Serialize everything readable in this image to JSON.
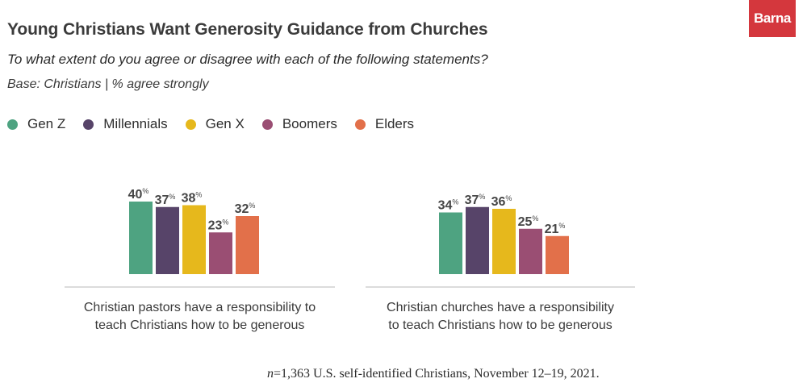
{
  "header": {
    "title": "Young Christians Want Generosity Guidance from Churches",
    "subtitle": "To what extent do you agree or disagree with each of the following statements?",
    "base": "Base: Christians | % agree strongly",
    "logo": "Barna"
  },
  "colors": {
    "Gen Z": "#4ea381",
    "Millennials": "#574469",
    "Gen X": "#e6b81c",
    "Boomers": "#9a4e73",
    "Elders": "#e2704a",
    "logo_bg": "#d4373d"
  },
  "footnote": {
    "n_symbol": "n",
    "text": "=1,363 U.S. self-identified Christians, November 12–19, 2021."
  },
  "chart_data": {
    "type": "bar",
    "title": "Young Christians Want Generosity Guidance from Churches",
    "xlabel": "",
    "ylabel": "% agree strongly",
    "ylim": [
      0,
      100
    ],
    "grid": false,
    "legend_position": "top-left",
    "value_suffix": "%",
    "legend": [
      "Gen Z",
      "Millennials",
      "Gen X",
      "Boomers",
      "Elders"
    ],
    "categories": [
      "Christian pastors have a responsibility to teach Christians how to be generous",
      "Christian churches have a responsibility to teach Christians how to be generous"
    ],
    "category_lines": [
      [
        "Christian pastors have a responsibility to",
        "teach Christians how to be generous"
      ],
      [
        "Christian churches have a responsibility",
        "to teach Christians how to be generous"
      ]
    ],
    "series": [
      {
        "name": "Gen Z",
        "values": [
          40,
          34
        ]
      },
      {
        "name": "Millennials",
        "values": [
          37,
          37
        ]
      },
      {
        "name": "Gen X",
        "values": [
          38,
          36
        ]
      },
      {
        "name": "Boomers",
        "values": [
          23,
          25
        ]
      },
      {
        "name": "Elders",
        "values": [
          32,
          21
        ]
      }
    ]
  }
}
